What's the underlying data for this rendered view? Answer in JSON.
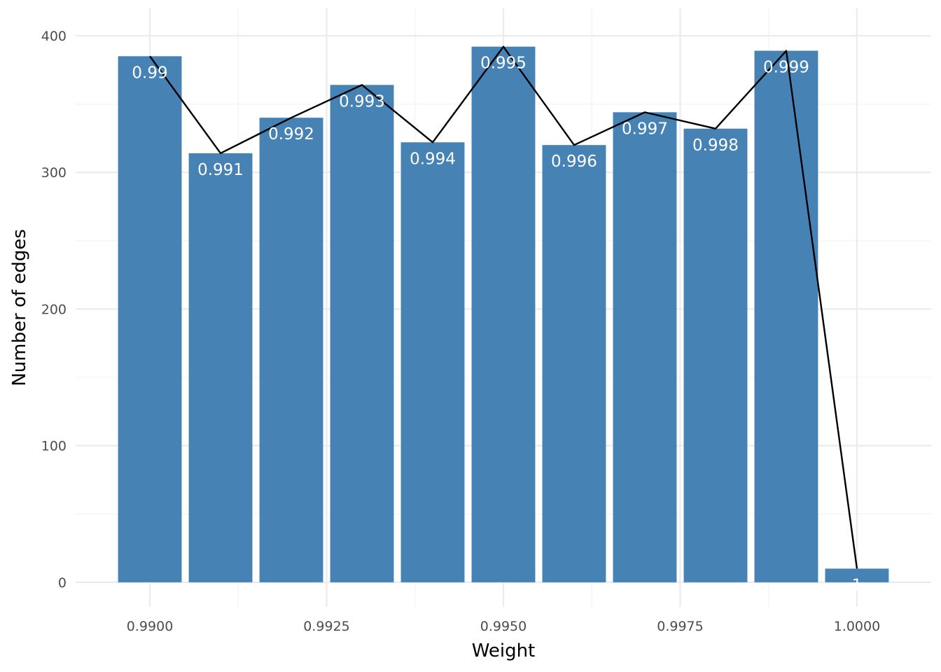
{
  "chart_data": {
    "type": "bar",
    "title": "",
    "xlabel": "Weight",
    "ylabel": "Number of edges",
    "x": [
      0.99,
      0.991,
      0.992,
      0.993,
      0.994,
      0.995,
      0.996,
      0.997,
      0.998,
      0.999,
      1.0
    ],
    "values": [
      385,
      314,
      340,
      364,
      322,
      392,
      320,
      344,
      332,
      389,
      10
    ],
    "bar_labels": [
      "0.99",
      "0.991",
      "0.992",
      "0.993",
      "0.994",
      "0.995",
      "0.996",
      "0.997",
      "0.998",
      "0.999",
      "1"
    ],
    "line_overlay": true,
    "xlim": [
      0.98895,
      1.00105
    ],
    "ylim": [
      -18,
      420
    ],
    "x_ticks": [
      0.99,
      0.9925,
      0.995,
      0.9975,
      1.0
    ],
    "x_tick_labels": [
      "0.9900",
      "0.9925",
      "0.9950",
      "0.9975",
      "1.0000"
    ],
    "y_ticks": [
      0,
      100,
      200,
      300,
      400
    ],
    "y_tick_labels": [
      "0",
      "100",
      "200",
      "300",
      "400"
    ],
    "grid": true,
    "colors": {
      "bar": "#4682B4",
      "line": "#000000",
      "bar_label": "#ffffff"
    }
  }
}
